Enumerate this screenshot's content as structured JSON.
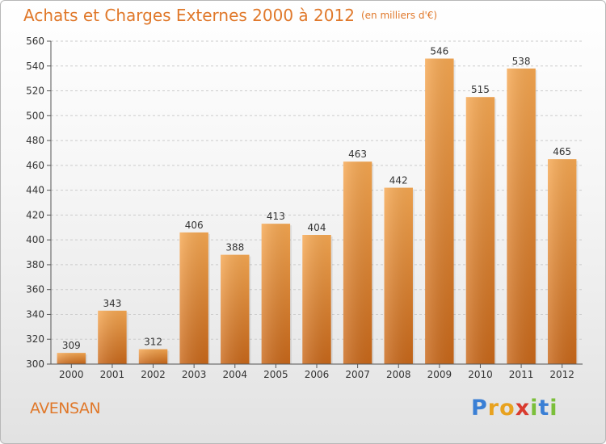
{
  "title": "Achats et Charges Externes 2000 à 2012",
  "unit": "(en milliers d'€)",
  "commune": "AVENSAN",
  "logo": {
    "letters": [
      "P",
      "r",
      "o",
      "x",
      "i",
      "t",
      "i"
    ],
    "colors": [
      "#3a7fd5",
      "#e8a21f",
      "#e8a21f",
      "#d93b2f",
      "#7bbf3a",
      "#3a7fd5",
      "#7bbf3a"
    ]
  },
  "colors": {
    "bar_top": "#f6a852",
    "bar_bottom": "#c9681a",
    "text": "#e0782a",
    "grid": "#cccccc"
  },
  "chart_data": {
    "type": "bar",
    "title": "Achats et Charges Externes 2000 à 2012",
    "subtitle": "(en milliers d'€)",
    "categories": [
      "2000",
      "2001",
      "2002",
      "2003",
      "2004",
      "2005",
      "2006",
      "2007",
      "2008",
      "2009",
      "2010",
      "2011",
      "2012"
    ],
    "values": [
      309,
      343,
      312,
      406,
      388,
      413,
      404,
      463,
      442,
      546,
      515,
      538,
      465
    ],
    "ylim": [
      300,
      560
    ],
    "yticks": [
      300,
      320,
      340,
      360,
      380,
      400,
      420,
      440,
      460,
      480,
      500,
      520,
      540,
      560
    ],
    "grid": true,
    "data_labels": true
  }
}
